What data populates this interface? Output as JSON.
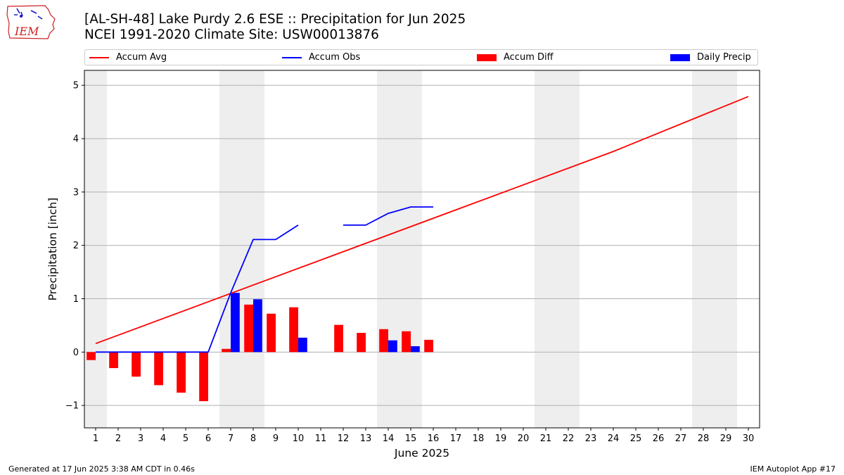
{
  "logo": {
    "text": "IEM"
  },
  "title": {
    "line1": "[AL-SH-48] Lake Purdy 2.6 ESE :: Precipitation for Jun 2025",
    "line2": "NCEI 1991-2020 Climate Site: USW00013876"
  },
  "legend": {
    "items": [
      {
        "label": "Accum Avg",
        "kind": "line",
        "color": "#ff0000"
      },
      {
        "label": "Accum Obs",
        "kind": "line",
        "color": "#0000ff"
      },
      {
        "label": "Accum Diff",
        "kind": "bar",
        "color": "#ff0000"
      },
      {
        "label": "Daily Precip",
        "kind": "bar",
        "color": "#0000ff"
      }
    ]
  },
  "footer": {
    "left": "Generated at 17 Jun 2025 3:38 AM CDT in 0.46s",
    "right": "IEM Autoplot App #17"
  },
  "chart_data": {
    "type": "bar",
    "xlabel": "June 2025",
    "ylabel": "Precipitation [inch]",
    "xlim": [
      0.5,
      30.5
    ],
    "ylim": [
      -1.42,
      5.28
    ],
    "x_ticks": [
      1,
      2,
      3,
      4,
      5,
      6,
      7,
      8,
      9,
      10,
      11,
      12,
      13,
      14,
      15,
      16,
      17,
      18,
      19,
      20,
      21,
      22,
      23,
      24,
      25,
      26,
      27,
      28,
      29,
      30
    ],
    "y_ticks": [
      -1,
      0,
      1,
      2,
      3,
      4,
      5
    ],
    "y_tick_labels": [
      "−1",
      "0",
      "1",
      "2",
      "3",
      "4",
      "5"
    ],
    "grid": "y",
    "legend_position": "top",
    "weekend_shading": [
      [
        1,
        1
      ],
      [
        7,
        8
      ],
      [
        14,
        15
      ],
      [
        21,
        22
      ],
      [
        28,
        29
      ]
    ],
    "shading_color": "#eeeeee",
    "series": [
      {
        "name": "Accum Avg",
        "type": "line",
        "color": "#ff0000",
        "x": [
          1,
          24,
          30
        ],
        "values": [
          0.16,
          3.76,
          4.79
        ]
      },
      {
        "name": "Accum Obs",
        "type": "line",
        "color": "#0000ff",
        "x": [
          1,
          2,
          3,
          4,
          5,
          6,
          7,
          8,
          9,
          10,
          11,
          12,
          13,
          14,
          15,
          16
        ],
        "values": [
          0,
          0,
          0,
          0,
          0,
          0,
          1.11,
          2.11,
          2.11,
          2.38,
          null,
          2.38,
          2.38,
          2.6,
          2.72,
          2.72
        ]
      },
      {
        "name": "Accum Diff",
        "type": "bar",
        "color": "#ff0000",
        "x": [
          1,
          2,
          3,
          4,
          5,
          6,
          7,
          8,
          9,
          10,
          12,
          13,
          14,
          15,
          16
        ],
        "values": [
          -0.15,
          -0.3,
          -0.46,
          -0.62,
          -0.76,
          -0.92,
          0.06,
          0.89,
          0.72,
          0.84,
          0.51,
          0.36,
          0.43,
          0.39,
          0.23
        ]
      },
      {
        "name": "Daily Precip",
        "type": "bar",
        "color": "#0000ff",
        "x": [
          7,
          8,
          10,
          14,
          15
        ],
        "values": [
          1.11,
          0.99,
          0.27,
          0.22,
          0.11
        ]
      }
    ]
  }
}
